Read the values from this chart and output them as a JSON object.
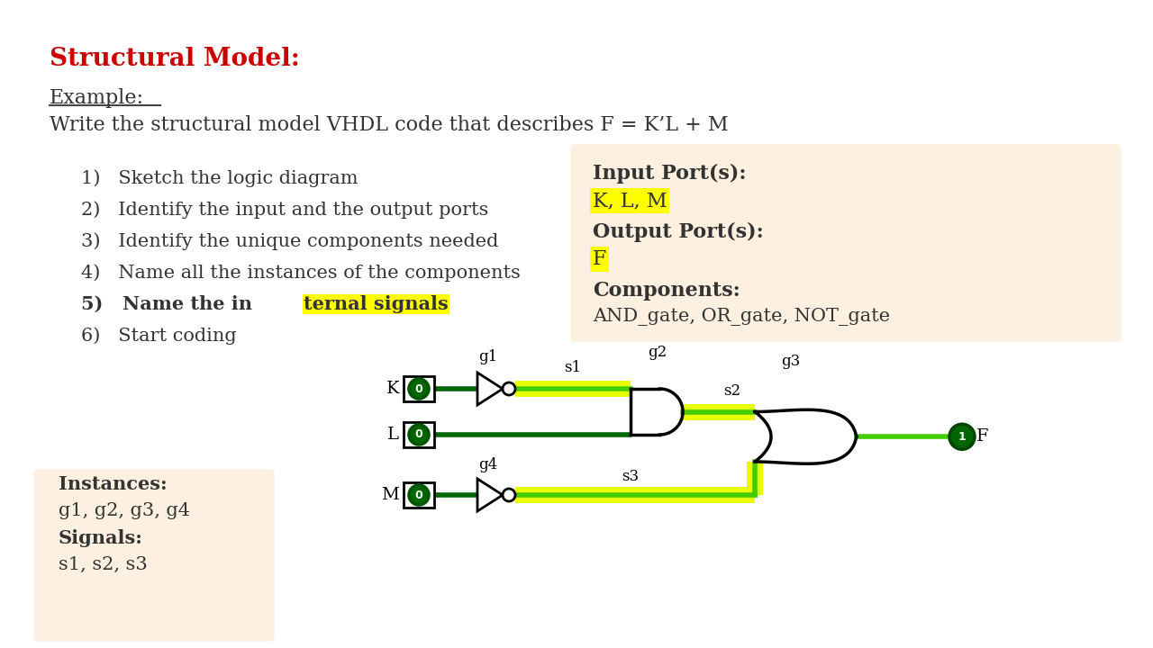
{
  "title": "Structural Model:",
  "title_color": "#cc0000",
  "bg_color": "#ffffff",
  "example_text": "Example:",
  "problem_text": "Write the structural model VHDL code that describes F = K’L + M",
  "right_box_color": "#fdf0e0",
  "right_box_title": "Input Port(s):",
  "right_box_inputs": "K, L, M",
  "right_box_output_title": "Output Port(s):",
  "right_box_output": "F",
  "right_box_comp_title": "Components:",
  "right_box_comp": "AND_gate, OR_gate, NOT_gate",
  "left_box_color": "#fdf0e0",
  "instances_title": "Instances:",
  "instances_text": "g1, g2, g3, g4",
  "signals_title": "Signals:",
  "signals_text": "s1, s2, s3",
  "highlight_yellow": "#ffff00",
  "wire_green_dark": "#006600",
  "wire_green_bright": "#44cc00",
  "signal_yellow": "#e8ff00",
  "node_fill": "#008800"
}
